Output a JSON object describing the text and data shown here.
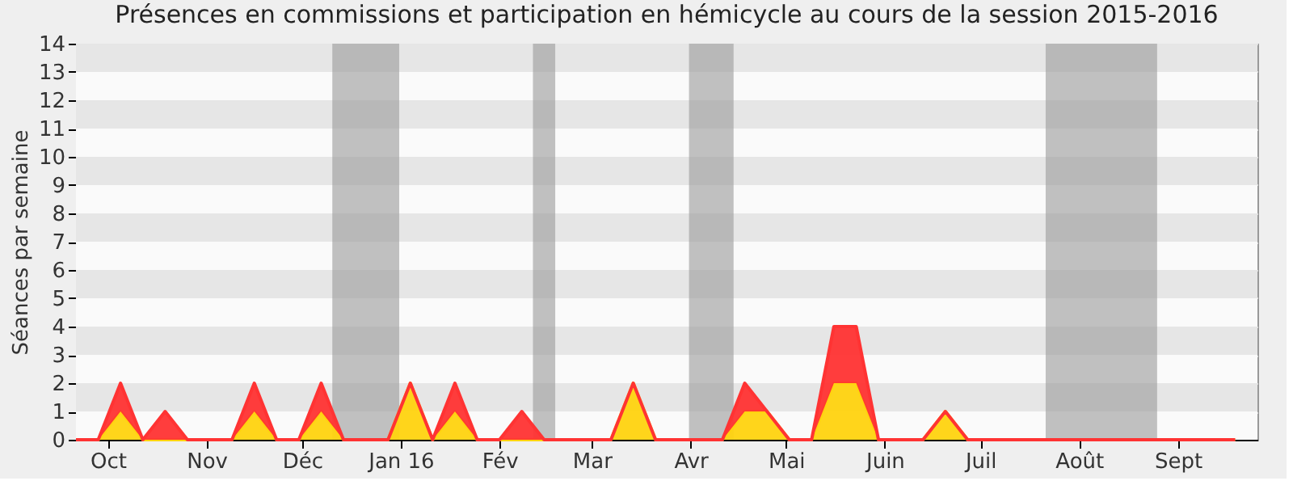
{
  "chart_data": {
    "type": "area",
    "stacked": true,
    "title": "Présences en commissions et participation en hémicycle au cours de la session 2015-2016",
    "ylabel": "Séances par semaine",
    "x": [
      "2015-09-21",
      "2015-09-28",
      "2015-10-05",
      "2015-10-12",
      "2015-10-19",
      "2015-10-26",
      "2015-11-02",
      "2015-11-09",
      "2015-11-16",
      "2015-11-23",
      "2015-11-30",
      "2015-12-07",
      "2015-12-14",
      "2015-12-21",
      "2015-12-28",
      "2016-01-04",
      "2016-01-11",
      "2016-01-18",
      "2016-01-25",
      "2016-02-01",
      "2016-02-08",
      "2016-02-15",
      "2016-02-22",
      "2016-02-29",
      "2016-03-07",
      "2016-03-14",
      "2016-03-21",
      "2016-03-28",
      "2016-04-04",
      "2016-04-11",
      "2016-04-18",
      "2016-04-25",
      "2016-05-02",
      "2016-05-09",
      "2016-05-16",
      "2016-05-23",
      "2016-05-30",
      "2016-06-06",
      "2016-06-13",
      "2016-06-20",
      "2016-06-27",
      "2016-07-04",
      "2016-07-11",
      "2016-07-18",
      "2016-07-25",
      "2016-08-01",
      "2016-08-08",
      "2016-08-15",
      "2016-08-22",
      "2016-08-29",
      "2016-09-05",
      "2016-09-12",
      "2016-09-19"
    ],
    "series": [
      {
        "color": "#ffd30f",
        "values": [
          0,
          0,
          1,
          0,
          0,
          0,
          0,
          0,
          1,
          0,
          0,
          1,
          0,
          0,
          0,
          2,
          0,
          1,
          0,
          0,
          0,
          0,
          0,
          0,
          0,
          2,
          0,
          0,
          0,
          0,
          1,
          1,
          0,
          0,
          2,
          2,
          0,
          0,
          0,
          1,
          0,
          0,
          0,
          0,
          0,
          0,
          0,
          0,
          0,
          0,
          0,
          0,
          0
        ]
      },
      {
        "color": "#ff3333",
        "values": [
          0,
          0,
          1,
          0,
          1,
          0,
          0,
          0,
          1,
          0,
          0,
          1,
          0,
          0,
          0,
          0,
          0,
          1,
          0,
          0,
          1,
          0,
          0,
          0,
          0,
          0,
          0,
          0,
          0,
          0,
          1,
          0,
          0,
          0,
          2,
          2,
          0,
          0,
          0,
          0,
          0,
          0,
          0,
          0,
          0,
          0,
          0,
          0,
          0,
          0,
          0,
          0,
          0
        ]
      }
    ],
    "xlim": [
      "2015-09-21",
      "2016-09-26"
    ],
    "xticks": [
      {
        "value": "2015-10-01",
        "label": "Oct"
      },
      {
        "value": "2015-11-01",
        "label": "Nov"
      },
      {
        "value": "2015-12-01",
        "label": "Déc"
      },
      {
        "value": "2016-01-01",
        "label": "Jan 16"
      },
      {
        "value": "2016-02-01",
        "label": "Fév"
      },
      {
        "value": "2016-03-01",
        "label": "Mar"
      },
      {
        "value": "2016-04-01",
        "label": "Avr"
      },
      {
        "value": "2016-05-01",
        "label": "Mai"
      },
      {
        "value": "2016-06-01",
        "label": "Juin"
      },
      {
        "value": "2016-07-01",
        "label": "Juil"
      },
      {
        "value": "2016-08-01",
        "label": "Août"
      },
      {
        "value": "2016-09-01",
        "label": "Sept"
      }
    ],
    "ylim": [
      0,
      14
    ],
    "yticks": [
      0,
      1,
      2,
      3,
      4,
      5,
      6,
      7,
      8,
      9,
      10,
      11,
      12,
      13,
      14
    ],
    "grid": "y",
    "bands": [
      {
        "axis": "x",
        "from": "2015-12-10T12:00",
        "to": "2015-12-31T12:00",
        "color": "#999999"
      },
      {
        "axis": "x",
        "from": "2016-02-11T12:00",
        "to": "2016-02-18T12:00",
        "color": "#999999"
      },
      {
        "axis": "x",
        "from": "2016-03-31T12:00",
        "to": "2016-04-14T12:00",
        "color": "#999999"
      },
      {
        "axis": "x",
        "from": "2016-07-21T12:00",
        "to": "2016-08-25T12:00",
        "color": "#999999"
      }
    ]
  }
}
